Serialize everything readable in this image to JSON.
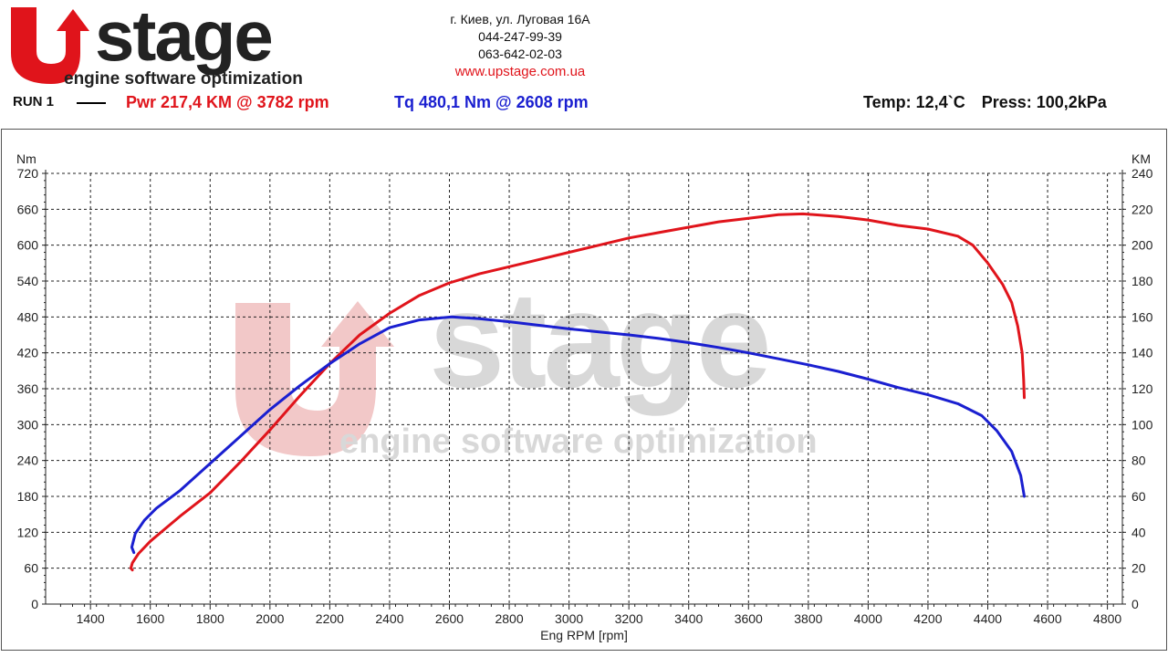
{
  "header": {
    "logo_word": "Ustage",
    "logo_tagline": "engine software optimization",
    "address": "г. Киев, ул. Луговая 16А",
    "phone1": "044-247-99-39",
    "phone2": "063-642-02-03",
    "website": "www.upstage.com.ua"
  },
  "run": {
    "label": "RUN 1",
    "pwr_text": "Pwr  217,4 KM @ 3782 rpm",
    "tq_text": "Tq 480,1 Nm @ 2608 rpm",
    "temp_text": "Temp: 12,4`C",
    "press_text": "Press: 100,2kPa"
  },
  "colors": {
    "power": "#e0141b",
    "torque": "#1a1fd0",
    "watermark_red": "#f2c8c8",
    "watermark_gray": "#d8d8d8"
  },
  "chart_data": {
    "type": "line",
    "title": "",
    "xlabel": "Eng RPM [rpm]",
    "ylabel_left": "Nm",
    "ylabel_right": "KM",
    "xlim": [
      1250,
      4850
    ],
    "x_ticks": [
      1400,
      1600,
      1800,
      2000,
      2200,
      2400,
      2600,
      2800,
      3000,
      3200,
      3400,
      3600,
      3800,
      4000,
      4200,
      4400,
      4600,
      4800
    ],
    "ylim_left": [
      0,
      720
    ],
    "y_ticks_left": [
      0,
      60,
      120,
      180,
      240,
      300,
      360,
      420,
      480,
      540,
      600,
      660,
      720
    ],
    "ylim_right": [
      0,
      240
    ],
    "y_ticks_right": [
      0,
      20,
      40,
      60,
      80,
      100,
      120,
      140,
      160,
      180,
      200,
      220,
      240
    ],
    "grid": true,
    "series": [
      {
        "name": "Pwr",
        "axis": "right",
        "color": "#e0141b",
        "points": [
          [
            1540,
            19
          ],
          [
            1535,
            20
          ],
          [
            1540,
            23
          ],
          [
            1560,
            28
          ],
          [
            1600,
            35
          ],
          [
            1650,
            42
          ],
          [
            1700,
            49
          ],
          [
            1800,
            62
          ],
          [
            1900,
            79
          ],
          [
            2000,
            97
          ],
          [
            2100,
            116
          ],
          [
            2200,
            134
          ],
          [
            2300,
            150
          ],
          [
            2400,
            162
          ],
          [
            2500,
            172
          ],
          [
            2600,
            179
          ],
          [
            2700,
            184
          ],
          [
            2800,
            188
          ],
          [
            2900,
            192
          ],
          [
            3000,
            196
          ],
          [
            3100,
            200
          ],
          [
            3200,
            204
          ],
          [
            3300,
            207
          ],
          [
            3400,
            210
          ],
          [
            3500,
            213
          ],
          [
            3600,
            215
          ],
          [
            3700,
            217
          ],
          [
            3782,
            217.4
          ],
          [
            3900,
            216
          ],
          [
            4000,
            214
          ],
          [
            4100,
            211
          ],
          [
            4200,
            209
          ],
          [
            4300,
            205
          ],
          [
            4350,
            200
          ],
          [
            4400,
            190
          ],
          [
            4450,
            178
          ],
          [
            4480,
            168
          ],
          [
            4500,
            155
          ],
          [
            4515,
            140
          ],
          [
            4520,
            125
          ],
          [
            4522,
            115
          ]
        ]
      },
      {
        "name": "Tq",
        "axis": "left",
        "color": "#1a1fd0",
        "points": [
          [
            1545,
            86
          ],
          [
            1538,
            95
          ],
          [
            1550,
            118
          ],
          [
            1580,
            140
          ],
          [
            1620,
            160
          ],
          [
            1700,
            190
          ],
          [
            1800,
            235
          ],
          [
            1900,
            280
          ],
          [
            2000,
            325
          ],
          [
            2100,
            365
          ],
          [
            2200,
            402
          ],
          [
            2300,
            435
          ],
          [
            2400,
            462
          ],
          [
            2500,
            475
          ],
          [
            2608,
            480.1
          ],
          [
            2700,
            477
          ],
          [
            2800,
            472
          ],
          [
            2900,
            466
          ],
          [
            3000,
            460
          ],
          [
            3100,
            455
          ],
          [
            3200,
            450
          ],
          [
            3300,
            444
          ],
          [
            3400,
            437
          ],
          [
            3500,
            429
          ],
          [
            3600,
            420
          ],
          [
            3700,
            410
          ],
          [
            3800,
            400
          ],
          [
            3900,
            389
          ],
          [
            4000,
            376
          ],
          [
            4100,
            362
          ],
          [
            4200,
            350
          ],
          [
            4300,
            335
          ],
          [
            4380,
            315
          ],
          [
            4430,
            290
          ],
          [
            4480,
            255
          ],
          [
            4510,
            215
          ],
          [
            4522,
            180
          ]
        ]
      }
    ]
  }
}
